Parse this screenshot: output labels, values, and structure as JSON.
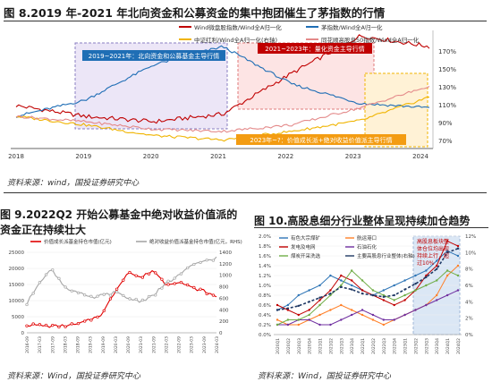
{
  "fig1": {
    "title": "图 8.2019 年-2021 年北向资金和公募资金的集中抱团催生了茅指数的行情",
    "source": "资料来源：wind，国投证券研究中心",
    "legend": [
      "Wind微盘股指数/Wind全A归一化",
      "茅指数/Wind全A归一化",
      "中证红利/Wind全A归一化(右轴)",
      "同花顺高股息50指数/Wind全A归一化"
    ],
    "colors": [
      "#c00000",
      "#1f6eb5",
      "#f0b400",
      "#e48a8a"
    ],
    "annotations": [
      "2019~2021年：北向资金和公募基金主导行情",
      "2021~2023年：量化资金主导行情",
      "2023年~?：价值成长派+绝对收益价值派主导行情"
    ],
    "ann_colors": [
      "#1f6eb5",
      "#c00000",
      "#f39c12"
    ],
    "right_ticks": [
      "170%",
      "150%",
      "130%",
      "110%",
      "90%",
      "70%"
    ],
    "x_ticks": [
      "2018",
      "2019",
      "2020",
      "2021",
      "2022",
      "2023",
      "2024"
    ]
  },
  "fig2": {
    "title": "图 9.2022Q2 开始公募基金中绝对收益价值派的资金正在持续壮大",
    "source": "资料来源：Wind，国投证券研究中心",
    "legend": [
      "价值成长派基金持仓市值(亿元)",
      "绝对收益价值派基金持仓市值(亿元，RHS)"
    ],
    "colors": [
      "#e00000",
      "#a6a6a6"
    ],
    "left_ticks": [
      "25000",
      "20000",
      "15000",
      "10000",
      "5000",
      "0"
    ],
    "right_ticks": [
      "1400",
      "1200",
      "1000",
      "800",
      "600",
      "400",
      "200",
      "0"
    ]
  },
  "fig3": {
    "title": "图 10.高股息细分行业整体呈现持续加仓趋势",
    "source": "资料来源：Wind，国投证券研究中心",
    "legend": [
      "有色大宗煤矿",
      "航运港口",
      "发电及电网",
      "石油石化",
      "煤炭开采洗选",
      "主要高股息行业整体(右轴)"
    ],
    "colors": [
      "#2e75b6",
      "#ff7f27",
      "#c00000",
      "#7030a0",
      "#70ad47",
      "#1f3864"
    ],
    "annotation": "高股息板块整体仓位均出现持续上行，超过10%",
    "left_ticks": [
      "2.0%",
      "1.8%",
      "1.6%",
      "1.4%",
      "1.2%",
      "1.0%",
      "0.8%",
      "0.6%",
      "0.4%",
      "0.2%",
      "0.0%"
    ],
    "right_ticks": [
      "12%",
      "10%",
      "8%",
      "6%",
      "4%",
      "2%",
      "0%"
    ]
  },
  "chart_data": [
    {
      "type": "line",
      "x": [
        "2018",
        "2019",
        "2020",
        "2021",
        "2022",
        "2023",
        "2024"
      ],
      "series": [
        {
          "name": "Wind微盘股指数/Wind全A归一化",
          "values": [
            110,
            100,
            95,
            102,
            140,
            175,
            165
          ]
        },
        {
          "name": "茅指数/Wind全A归一化",
          "values": [
            100,
            115,
            148,
            165,
            130,
            112,
            108
          ]
        },
        {
          "name": "中证红利/Wind全A归一化(右轴)",
          "values": [
            100,
            92,
            82,
            78,
            86,
            96,
            118
          ]
        },
        {
          "name": "同花顺高股息50指数/Wind全A归一化",
          "values": [
            100,
            95,
            88,
            86,
            92,
            108,
            128
          ]
        }
      ]
    },
    {
      "type": "line",
      "categories": [
        "2016-09",
        "2017-03",
        "2017-09",
        "2018-03",
        "2018-09",
        "2019-03",
        "2019-09",
        "2020-03",
        "2020-09",
        "2021-03",
        "2021-09",
        "2022-03",
        "2022-09",
        "2023-03",
        "2023-09",
        "2024-03"
      ],
      "series": [
        {
          "name": "价值成长派基金持仓市值(亿元)",
          "values": [
            2500,
            2300,
            2000,
            2200,
            2600,
            4000,
            6000,
            13000,
            19000,
            17000,
            19500,
            15000,
            16000,
            14000,
            13000,
            11000
          ]
        },
        {
          "name": "绝对收益价值派基金持仓市值(亿元，RHS)",
          "values": [
            500,
            900,
            1100,
            800,
            700,
            600,
            650,
            700,
            600,
            550,
            650,
            850,
            1000,
            1150,
            1250,
            1300
          ]
        }
      ],
      "ylim": [
        0,
        25000
      ]
    },
    {
      "type": "line",
      "categories": [
        "2020Q1",
        "2020Q2",
        "2020Q3",
        "2020Q4",
        "2021Q1",
        "2021Q2",
        "2021Q3",
        "2021Q4",
        "2022Q1",
        "2022Q2",
        "2022Q3",
        "2022Q4",
        "2023Q1",
        "2023Q2",
        "2023Q3",
        "2023Q4",
        "2024Q1",
        "2024Q2"
      ],
      "series": [
        {
          "name": "有色大宗煤矿",
          "values": [
            0.5,
            0.6,
            0.8,
            0.9,
            1.0,
            1.2,
            1.1,
            1.0,
            0.9,
            0.8,
            0.9,
            1.0,
            1.1,
            1.2,
            1.3,
            1.5,
            1.7,
            1.6
          ]
        },
        {
          "name": "航运港口",
          "values": [
            0.3,
            0.2,
            0.2,
            0.3,
            0.4,
            0.5,
            0.6,
            0.5,
            0.4,
            0.3,
            0.2,
            0.3,
            0.4,
            0.5,
            0.6,
            0.8,
            1.2,
            1.4
          ]
        },
        {
          "name": "发电及电网",
          "values": [
            0.6,
            0.5,
            0.4,
            0.5,
            0.7,
            0.9,
            1.2,
            1.1,
            0.9,
            0.8,
            0.7,
            0.6,
            0.7,
            0.9,
            1.2,
            1.4,
            1.9,
            1.8
          ]
        },
        {
          "name": "石油石化",
          "values": [
            0.2,
            0.2,
            0.3,
            0.3,
            0.2,
            0.2,
            0.3,
            0.4,
            0.5,
            0.4,
            0.3,
            0.3,
            0.4,
            0.5,
            0.6,
            0.7,
            0.8,
            0.9
          ]
        },
        {
          "name": "煤炭开采洗选",
          "values": [
            0.2,
            0.3,
            0.3,
            0.4,
            0.6,
            0.8,
            1.0,
            1.3,
            1.1,
            0.9,
            0.8,
            0.7,
            0.8,
            0.9,
            1.0,
            1.1,
            1.3,
            1.2
          ]
        },
        {
          "name": "主要高股息行业整体(右轴)",
          "values": [
            3.0,
            3.2,
            3.5,
            4.0,
            4.5,
            5.0,
            5.8,
            5.5,
            5.0,
            4.8,
            4.6,
            4.8,
            5.5,
            6.2,
            7.0,
            8.0,
            10.0,
            10.5
          ]
        }
      ],
      "ylim": [
        0,
        2.0
      ]
    }
  ]
}
